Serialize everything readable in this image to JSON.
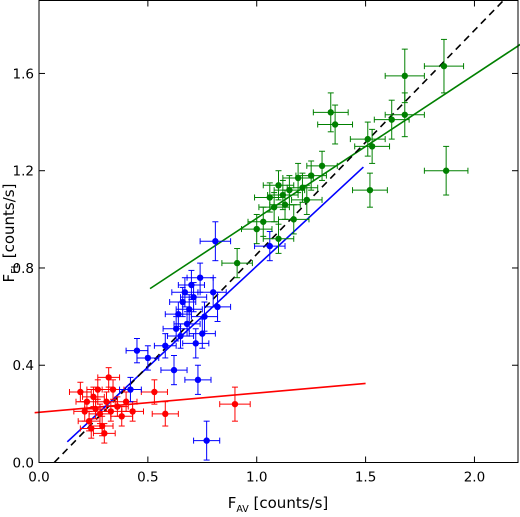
{
  "chart_data": {
    "type": "scatter",
    "xlabel_main": "F",
    "xlabel_sub": "AV",
    "xlabel_unit": " [counts/s]",
    "ylabel_main": "F",
    "ylabel_sub": "FL",
    "ylabel_unit": " [counts/s]",
    "xlim": [
      0.0,
      2.2
    ],
    "ylim": [
      0.0,
      1.9
    ],
    "xticks": [
      0.0,
      0.5,
      1.0,
      1.5,
      2.0
    ],
    "xtick_labels": [
      "0.0",
      "0.5",
      "1.0",
      "1.5",
      "2.0"
    ],
    "yticks": [
      0.0,
      0.4,
      0.8,
      1.2,
      1.6
    ],
    "ytick_labels": [
      "0.0",
      "0.4",
      "0.8",
      "1.2",
      "1.6"
    ],
    "grid": false,
    "legend": "none",
    "series": [
      {
        "color": "#ff0000",
        "points": [
          {
            "x": 0.19,
            "y": 0.29,
            "xerr": 0.05,
            "yerr": 0.04
          },
          {
            "x": 0.21,
            "y": 0.21,
            "xerr": 0.05,
            "yerr": 0.04
          },
          {
            "x": 0.22,
            "y": 0.25,
            "xerr": 0.05,
            "yerr": 0.04
          },
          {
            "x": 0.23,
            "y": 0.17,
            "xerr": 0.05,
            "yerr": 0.04
          },
          {
            "x": 0.24,
            "y": 0.14,
            "xerr": 0.05,
            "yerr": 0.04
          },
          {
            "x": 0.25,
            "y": 0.27,
            "xerr": 0.05,
            "yerr": 0.04
          },
          {
            "x": 0.26,
            "y": 0.22,
            "xerr": 0.05,
            "yerr": 0.04
          },
          {
            "x": 0.27,
            "y": 0.3,
            "xerr": 0.05,
            "yerr": 0.04
          },
          {
            "x": 0.28,
            "y": 0.2,
            "xerr": 0.05,
            "yerr": 0.04
          },
          {
            "x": 0.29,
            "y": 0.15,
            "xerr": 0.05,
            "yerr": 0.04
          },
          {
            "x": 0.3,
            "y": 0.12,
            "xerr": 0.05,
            "yerr": 0.04
          },
          {
            "x": 0.31,
            "y": 0.25,
            "xerr": 0.05,
            "yerr": 0.04
          },
          {
            "x": 0.32,
            "y": 0.35,
            "xerr": 0.05,
            "yerr": 0.04
          },
          {
            "x": 0.33,
            "y": 0.21,
            "xerr": 0.05,
            "yerr": 0.04
          },
          {
            "x": 0.34,
            "y": 0.3,
            "xerr": 0.05,
            "yerr": 0.04
          },
          {
            "x": 0.36,
            "y": 0.23,
            "xerr": 0.05,
            "yerr": 0.04
          },
          {
            "x": 0.38,
            "y": 0.19,
            "xerr": 0.05,
            "yerr": 0.04
          },
          {
            "x": 0.4,
            "y": 0.25,
            "xerr": 0.05,
            "yerr": 0.04
          },
          {
            "x": 0.43,
            "y": 0.21,
            "xerr": 0.05,
            "yerr": 0.04
          },
          {
            "x": 0.53,
            "y": 0.29,
            "xerr": 0.06,
            "yerr": 0.05
          },
          {
            "x": 0.58,
            "y": 0.2,
            "xerr": 0.06,
            "yerr": 0.05
          },
          {
            "x": 0.9,
            "y": 0.24,
            "xerr": 0.07,
            "yerr": 0.07
          }
        ],
        "fit": {
          "x": [
            -0.02,
            1.5
          ],
          "y": [
            0.205,
            0.325
          ]
        }
      },
      {
        "color": "#0000ff",
        "points": [
          {
            "x": 0.42,
            "y": 0.3,
            "xerr": 0.05,
            "yerr": 0.05
          },
          {
            "x": 0.45,
            "y": 0.46,
            "xerr": 0.05,
            "yerr": 0.05
          },
          {
            "x": 0.5,
            "y": 0.43,
            "xerr": 0.05,
            "yerr": 0.05
          },
          {
            "x": 0.58,
            "y": 0.48,
            "xerr": 0.05,
            "yerr": 0.05
          },
          {
            "x": 0.62,
            "y": 0.38,
            "xerr": 0.06,
            "yerr": 0.06
          },
          {
            "x": 0.63,
            "y": 0.55,
            "xerr": 0.06,
            "yerr": 0.05
          },
          {
            "x": 0.64,
            "y": 0.61,
            "xerr": 0.06,
            "yerr": 0.05
          },
          {
            "x": 0.65,
            "y": 0.52,
            "xerr": 0.06,
            "yerr": 0.05
          },
          {
            "x": 0.66,
            "y": 0.66,
            "xerr": 0.06,
            "yerr": 0.06
          },
          {
            "x": 0.67,
            "y": 0.7,
            "xerr": 0.06,
            "yerr": 0.06
          },
          {
            "x": 0.68,
            "y": 0.57,
            "xerr": 0.06,
            "yerr": 0.05
          },
          {
            "x": 0.69,
            "y": 0.63,
            "xerr": 0.06,
            "yerr": 0.06
          },
          {
            "x": 0.7,
            "y": 0.73,
            "xerr": 0.06,
            "yerr": 0.06
          },
          {
            "x": 0.71,
            "y": 0.68,
            "xerr": 0.06,
            "yerr": 0.06
          },
          {
            "x": 0.72,
            "y": 0.49,
            "xerr": 0.06,
            "yerr": 0.06
          },
          {
            "x": 0.73,
            "y": 0.34,
            "xerr": 0.06,
            "yerr": 0.06
          },
          {
            "x": 0.74,
            "y": 0.76,
            "xerr": 0.06,
            "yerr": 0.06
          },
          {
            "x": 0.75,
            "y": 0.53,
            "xerr": 0.06,
            "yerr": 0.06
          },
          {
            "x": 0.76,
            "y": 0.6,
            "xerr": 0.06,
            "yerr": 0.06
          },
          {
            "x": 0.77,
            "y": 0.09,
            "xerr": 0.06,
            "yerr": 0.08
          },
          {
            "x": 0.8,
            "y": 0.7,
            "xerr": 0.06,
            "yerr": 0.06
          },
          {
            "x": 0.82,
            "y": 0.64,
            "xerr": 0.06,
            "yerr": 0.06
          },
          {
            "x": 0.81,
            "y": 0.91,
            "xerr": 0.07,
            "yerr": 0.08
          },
          {
            "x": 1.06,
            "y": 0.89,
            "xerr": 0.07,
            "yerr": 0.06
          }
        ],
        "fit": {
          "x": [
            0.13,
            1.49
          ],
          "y": [
            0.085,
            1.215
          ]
        }
      },
      {
        "color": "#008000",
        "points": [
          {
            "x": 0.91,
            "y": 0.82,
            "xerr": 0.07,
            "yerr": 0.06
          },
          {
            "x": 1.0,
            "y": 0.96,
            "xerr": 0.07,
            "yerr": 0.06
          },
          {
            "x": 1.03,
            "y": 0.99,
            "xerr": 0.07,
            "yerr": 0.06
          },
          {
            "x": 1.06,
            "y": 1.09,
            "xerr": 0.07,
            "yerr": 0.06
          },
          {
            "x": 1.08,
            "y": 1.05,
            "xerr": 0.07,
            "yerr": 0.06
          },
          {
            "x": 1.1,
            "y": 0.92,
            "xerr": 0.07,
            "yerr": 0.06
          },
          {
            "x": 1.1,
            "y": 1.14,
            "xerr": 0.07,
            "yerr": 0.06
          },
          {
            "x": 1.12,
            "y": 1.1,
            "xerr": 0.07,
            "yerr": 0.06
          },
          {
            "x": 1.13,
            "y": 1.06,
            "xerr": 0.07,
            "yerr": 0.06
          },
          {
            "x": 1.15,
            "y": 1.12,
            "xerr": 0.07,
            "yerr": 0.06
          },
          {
            "x": 1.17,
            "y": 1.0,
            "xerr": 0.07,
            "yerr": 0.06
          },
          {
            "x": 1.19,
            "y": 1.17,
            "xerr": 0.07,
            "yerr": 0.06
          },
          {
            "x": 1.21,
            "y": 1.13,
            "xerr": 0.07,
            "yerr": 0.06
          },
          {
            "x": 1.23,
            "y": 1.08,
            "xerr": 0.07,
            "yerr": 0.06
          },
          {
            "x": 1.25,
            "y": 1.18,
            "xerr": 0.07,
            "yerr": 0.06
          },
          {
            "x": 1.3,
            "y": 1.22,
            "xerr": 0.07,
            "yerr": 0.06
          },
          {
            "x": 1.34,
            "y": 1.44,
            "xerr": 0.08,
            "yerr": 0.08
          },
          {
            "x": 1.36,
            "y": 1.39,
            "xerr": 0.08,
            "yerr": 0.08
          },
          {
            "x": 1.51,
            "y": 1.33,
            "xerr": 0.08,
            "yerr": 0.07
          },
          {
            "x": 1.52,
            "y": 1.12,
            "xerr": 0.08,
            "yerr": 0.07
          },
          {
            "x": 1.53,
            "y": 1.3,
            "xerr": 0.08,
            "yerr": 0.07
          },
          {
            "x": 1.62,
            "y": 1.41,
            "xerr": 0.08,
            "yerr": 0.08
          },
          {
            "x": 1.68,
            "y": 1.59,
            "xerr": 0.09,
            "yerr": 0.11
          },
          {
            "x": 1.68,
            "y": 1.43,
            "xerr": 0.09,
            "yerr": 0.09
          },
          {
            "x": 1.86,
            "y": 1.63,
            "xerr": 0.09,
            "yerr": 0.11
          },
          {
            "x": 1.87,
            "y": 1.2,
            "xerr": 0.1,
            "yerr": 0.1
          }
        ],
        "fit": {
          "x": [
            0.51,
            2.22
          ],
          "y": [
            0.715,
            1.725
          ]
        }
      }
    ],
    "reference_line": {
      "x": [
        0.07,
        2.22
      ],
      "y": [
        0.0,
        1.98
      ],
      "color": "#000000",
      "style": "dashed"
    }
  }
}
